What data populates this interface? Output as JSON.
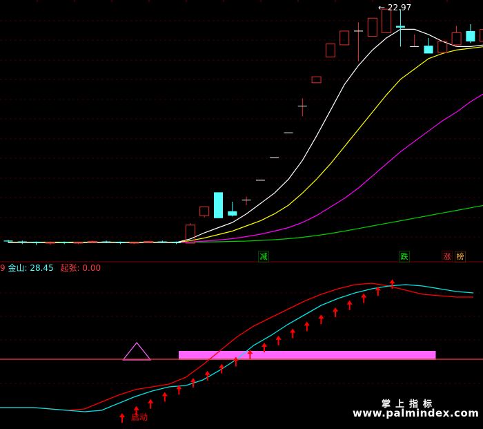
{
  "colors": {
    "background": "#000000",
    "grid": "#3a0000",
    "bull": "#e03030",
    "bear": "#54ffff",
    "ma5": "#ffffff",
    "ma10": "#ffff00",
    "ma20": "#ff00ff",
    "ma60": "#00d000",
    "line_gold": "#00e6e6",
    "line_red": "#ff0000",
    "bar_magenta": "#ff66ff",
    "arrow": "#ff0000"
  },
  "price_panel": {
    "high_label": "22.97",
    "high_marker": "←",
    "signals": [
      {
        "text": "减",
        "color": "#00ff00"
      },
      {
        "text": "跌",
        "color": "#00ff00"
      },
      {
        "text": "涨",
        "color": "#ff3b3b"
      },
      {
        "text": "榜",
        "color": "#ffb040"
      }
    ],
    "candles": [
      {
        "o": 9.55,
        "h": 9.6,
        "l": 9.4,
        "c": 9.5
      },
      {
        "o": 9.5,
        "h": 9.55,
        "l": 9.35,
        "c": 9.45
      },
      {
        "o": 9.45,
        "h": 9.5,
        "l": 9.3,
        "c": 9.4
      },
      {
        "o": 9.4,
        "h": 9.5,
        "l": 9.3,
        "c": 9.45
      },
      {
        "o": 9.45,
        "h": 9.5,
        "l": 9.35,
        "c": 9.4
      },
      {
        "o": 9.4,
        "h": 9.5,
        "l": 9.35,
        "c": 9.45
      },
      {
        "o": 9.45,
        "h": 9.55,
        "l": 9.4,
        "c": 9.5
      },
      {
        "o": 9.5,
        "h": 9.55,
        "l": 9.4,
        "c": 9.45
      },
      {
        "o": 9.45,
        "h": 9.5,
        "l": 9.35,
        "c": 9.4
      },
      {
        "o": 9.4,
        "h": 9.5,
        "l": 9.35,
        "c": 9.45
      },
      {
        "o": 9.45,
        "h": 9.5,
        "l": 9.4,
        "c": 9.5
      },
      {
        "o": 9.5,
        "h": 9.55,
        "l": 9.4,
        "c": 9.45
      },
      {
        "o": 9.45,
        "h": 9.5,
        "l": 9.35,
        "c": 9.4
      },
      {
        "o": 9.4,
        "h": 10.55,
        "l": 9.4,
        "c": 10.45
      },
      {
        "o": 11.0,
        "h": 11.5,
        "l": 10.9,
        "c": 11.5
      },
      {
        "o": 12.35,
        "h": 12.35,
        "l": 10.85,
        "c": 10.85
      },
      {
        "o": 11.25,
        "h": 11.8,
        "l": 10.95,
        "c": 11.0
      },
      {
        "o": 11.9,
        "h": 12.1,
        "l": 11.6,
        "c": 11.9
      },
      {
        "o": 13.05,
        "h": 13.05,
        "l": 13.05,
        "c": 13.05
      },
      {
        "o": 14.35,
        "h": 14.35,
        "l": 14.35,
        "c": 14.35
      },
      {
        "o": 15.8,
        "h": 15.8,
        "l": 15.8,
        "c": 15.8
      },
      {
        "o": 17.35,
        "h": 17.8,
        "l": 16.75,
        "c": 17.35
      },
      {
        "o": 18.7,
        "h": 19.05,
        "l": 18.7,
        "c": 19.05
      },
      {
        "o": 20.2,
        "h": 20.95,
        "l": 20.2,
        "c": 20.95
      },
      {
        "o": 20.9,
        "h": 21.7,
        "l": 20.9,
        "c": 21.7
      },
      {
        "o": 21.7,
        "h": 22.2,
        "l": 19.95,
        "c": 21.7
      },
      {
        "o": 21.4,
        "h": 22.45,
        "l": 21.4,
        "c": 22.45
      },
      {
        "o": 21.6,
        "h": 22.97,
        "l": 21.6,
        "c": 22.97
      },
      {
        "o": 22.0,
        "h": 22.97,
        "l": 20.8,
        "c": 21.9
      },
      {
        "o": 20.8,
        "h": 21.5,
        "l": 20.8,
        "c": 20.8
      },
      {
        "o": 20.85,
        "h": 21.3,
        "l": 20.4,
        "c": 20.4
      },
      {
        "o": 20.45,
        "h": 21.1,
        "l": 20.45,
        "c": 21.1
      },
      {
        "o": 20.9,
        "h": 22.0,
        "l": 20.8,
        "c": 21.6
      },
      {
        "o": 21.7,
        "h": 22.1,
        "l": 21.0,
        "c": 21.1
      },
      {
        "o": 21.1,
        "h": 21.8,
        "l": 21.0,
        "c": 21.8
      }
    ],
    "ma5": [
      9.45,
      9.45,
      9.44,
      9.43,
      9.43,
      9.43,
      9.44,
      9.45,
      9.45,
      9.45,
      9.45,
      9.45,
      9.44,
      9.65,
      10.0,
      10.3,
      10.6,
      11.1,
      11.7,
      12.3,
      13.1,
      14.2,
      15.6,
      17.1,
      18.6,
      19.7,
      20.6,
      21.3,
      21.8,
      21.8,
      21.5,
      21.1,
      20.8,
      20.8,
      20.9
    ],
    "ma10": [
      9.44,
      9.44,
      9.44,
      9.44,
      9.44,
      9.44,
      9.44,
      9.44,
      9.44,
      9.44,
      9.44,
      9.44,
      9.44,
      9.55,
      9.7,
      9.9,
      10.1,
      10.4,
      10.7,
      11.1,
      11.6,
      12.3,
      13.1,
      14.0,
      15.0,
      16.0,
      17.0,
      18.0,
      18.9,
      19.5,
      20.1,
      20.4,
      20.6,
      20.7,
      20.8
    ],
    "ma20": [
      9.44,
      9.44,
      9.44,
      9.44,
      9.44,
      9.44,
      9.44,
      9.44,
      9.44,
      9.44,
      9.44,
      9.44,
      9.44,
      9.47,
      9.52,
      9.58,
      9.66,
      9.78,
      9.92,
      10.1,
      10.3,
      10.6,
      11.0,
      11.5,
      12.0,
      12.6,
      13.3,
      14.0,
      14.7,
      15.3,
      15.9,
      16.5,
      17.0,
      17.6,
      18.1
    ],
    "ma60": [
      9.46,
      9.46,
      9.46,
      9.46,
      9.46,
      9.46,
      9.46,
      9.46,
      9.46,
      9.46,
      9.46,
      9.46,
      9.46,
      9.46,
      9.47,
      9.48,
      9.5,
      9.52,
      9.56,
      9.6,
      9.66,
      9.74,
      9.84,
      9.96,
      10.1,
      10.25,
      10.4,
      10.55,
      10.7,
      10.85,
      11.0,
      11.15,
      11.3,
      11.45,
      11.6
    ]
  },
  "indicator_panel": {
    "legend": {
      "prefix": "9",
      "jinshan_label": "金山:",
      "jinshan_value": "28.45",
      "qizhang_label": "起张:",
      "qizhang_value": "0.00"
    },
    "start_label": "启动",
    "jinshan_line": [
      0.05,
      0.05,
      0.05,
      0.04,
      0.03,
      0.02,
      0.03,
      0.08,
      0.13,
      0.17,
      0.2,
      0.21,
      0.25,
      0.32,
      0.4,
      0.5,
      0.57,
      0.65,
      0.72,
      0.79,
      0.84,
      0.88,
      0.91,
      0.93,
      0.94,
      0.93,
      0.91,
      0.89,
      0.88
    ],
    "red_line": [
      0.05,
      0.05,
      0.05,
      0.04,
      0.03,
      0.04,
      0.09,
      0.14,
      0.18,
      0.2,
      0.22,
      0.27,
      0.36,
      0.46,
      0.56,
      0.64,
      0.7,
      0.76,
      0.82,
      0.87,
      0.91,
      0.94,
      0.95,
      0.93,
      0.9,
      0.87,
      0.86,
      0.85,
      0.85
    ],
    "magenta_bars": [
      {
        "from": 12,
        "to": 27
      },
      {
        "from": 32.5,
        "to": 34.5
      }
    ],
    "triangle_at": 8.5,
    "arrows_from": 8,
    "arrows_to": 27
  }
}
